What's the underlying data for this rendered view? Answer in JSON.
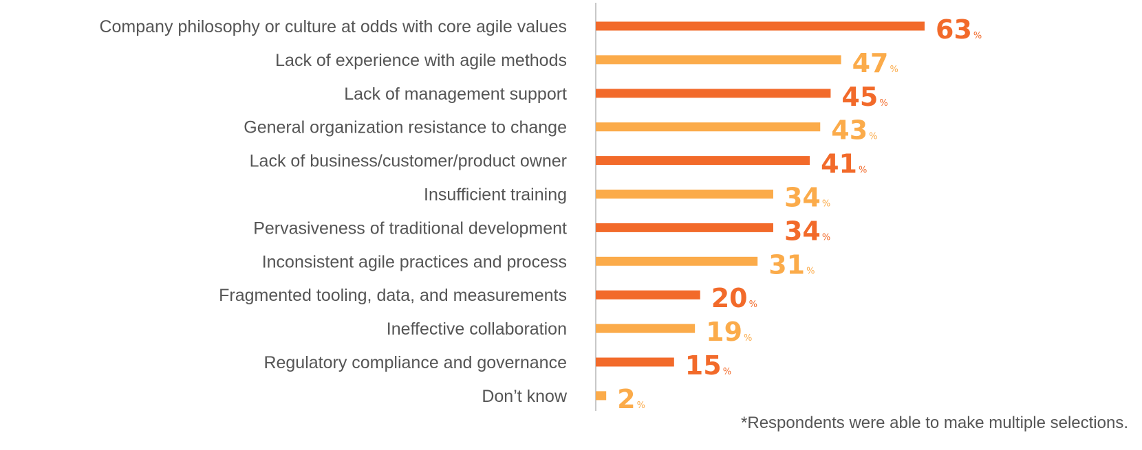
{
  "chart_data": {
    "type": "bar",
    "orientation": "horizontal",
    "title": "",
    "xlabel": "",
    "ylabel": "",
    "xlim": [
      0,
      63
    ],
    "value_suffix": "%",
    "grid": false,
    "categories": [
      "Company philosophy or culture at odds with core agile values",
      "Lack of experience with agile methods",
      "Lack of management support",
      "General organization resistance to change",
      "Lack of business/customer/product owner",
      "Insufficient training",
      "Pervasiveness of traditional development",
      "Inconsistent agile practices and process",
      "Fragmented tooling, data, and measurements",
      "Ineffective collaboration",
      "Regulatory compliance and governance",
      "Don’t know"
    ],
    "values": [
      63,
      47,
      45,
      43,
      41,
      34,
      34,
      31,
      20,
      19,
      15,
      2
    ],
    "colors": [
      "#f26a2a",
      "#fbab4a"
    ]
  },
  "footnote": "*Respondents were able to make multiple selections."
}
